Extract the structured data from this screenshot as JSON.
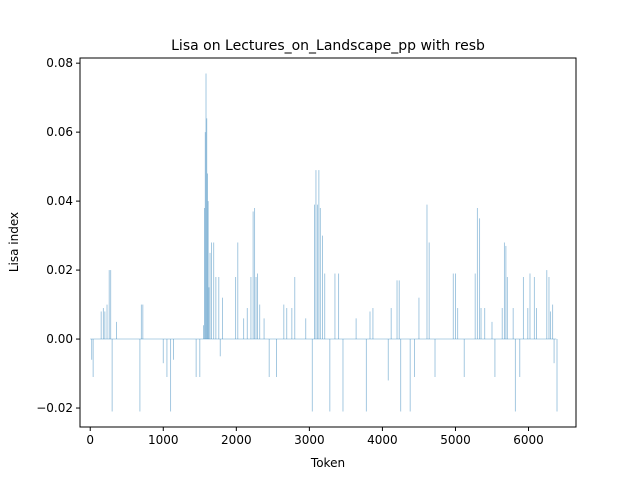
{
  "chart_data": {
    "type": "bar",
    "title": "Lisa on Lectures_on_Landscape_pp with resb",
    "xlabel": "Token",
    "ylabel": "Lisa index",
    "xlim": [
      -140,
      6650
    ],
    "ylim": [
      -0.0255,
      0.0815
    ],
    "xticks": [
      0,
      1000,
      2000,
      3000,
      4000,
      5000,
      6000
    ],
    "xtick_labels": [
      "0",
      "1000",
      "2000",
      "3000",
      "4000",
      "5000",
      "6000"
    ],
    "yticks": [
      -0.02,
      0.0,
      0.02,
      0.04,
      0.06,
      0.08
    ],
    "ytick_labels": [
      "−0.02",
      "0.00",
      "0.02",
      "0.04",
      "0.06",
      "0.08"
    ],
    "grid": false,
    "colors": {
      "bar": "#1f77b4"
    },
    "series": [
      {
        "x": [
          20,
          40,
          150,
          180,
          200,
          230,
          260,
          280,
          300,
          360,
          680,
          700,
          720,
          1000,
          1050,
          1100,
          1140,
          1450,
          1500,
          1550,
          1565,
          1575,
          1585,
          1595,
          1605,
          1615,
          1625,
          1640,
          1660,
          1690,
          1720,
          1760,
          1780,
          1810,
          1990,
          2020,
          2100,
          2150,
          2200,
          2230,
          2250,
          2270,
          2290,
          2320,
          2380,
          2450,
          2550,
          2650,
          2690,
          2760,
          2800,
          2950,
          3040,
          3070,
          3090,
          3110,
          3130,
          3150,
          3180,
          3210,
          3280,
          3350,
          3400,
          3460,
          3640,
          3780,
          3830,
          3870,
          4080,
          4120,
          4200,
          4230,
          4250,
          4380,
          4440,
          4500,
          4610,
          4640,
          4720,
          4970,
          5000,
          5030,
          5120,
          5270,
          5300,
          5330,
          5350,
          5400,
          5500,
          5540,
          5640,
          5670,
          5690,
          5710,
          5790,
          5820,
          5880,
          5930,
          5990,
          6020,
          6080,
          6110,
          6250,
          6280,
          6300,
          6330,
          6350,
          6390
        ],
        "values": [
          -0.006,
          -0.011,
          0.008,
          0.009,
          0.008,
          0.01,
          0.02,
          0.02,
          -0.021,
          0.005,
          -0.021,
          0.01,
          0.01,
          -0.007,
          -0.011,
          -0.021,
          -0.006,
          -0.011,
          -0.011,
          0.004,
          0.038,
          0.06,
          0.077,
          0.064,
          0.048,
          0.04,
          0.015,
          0.025,
          0.028,
          0.028,
          0.018,
          0.018,
          -0.005,
          0.012,
          0.018,
          0.028,
          0.006,
          0.009,
          0.018,
          0.037,
          0.038,
          0.018,
          0.019,
          0.01,
          0.006,
          -0.011,
          -0.011,
          0.01,
          0.009,
          0.009,
          0.018,
          0.006,
          -0.021,
          0.039,
          0.049,
          0.039,
          0.049,
          0.038,
          0.03,
          0.019,
          -0.021,
          0.019,
          0.019,
          -0.021,
          0.006,
          -0.021,
          0.008,
          0.009,
          -0.012,
          0.009,
          0.017,
          0.017,
          -0.021,
          -0.021,
          -0.011,
          0.012,
          0.039,
          0.028,
          -0.011,
          0.019,
          0.019,
          0.009,
          -0.011,
          0.019,
          0.038,
          0.035,
          0.009,
          0.009,
          0.005,
          -0.011,
          0.009,
          0.028,
          0.027,
          0.018,
          0.009,
          -0.021,
          -0.011,
          0.018,
          0.009,
          0.019,
          0.018,
          0.009,
          0.02,
          0.018,
          0.008,
          0.01,
          -0.007,
          -0.021
        ]
      }
    ]
  }
}
